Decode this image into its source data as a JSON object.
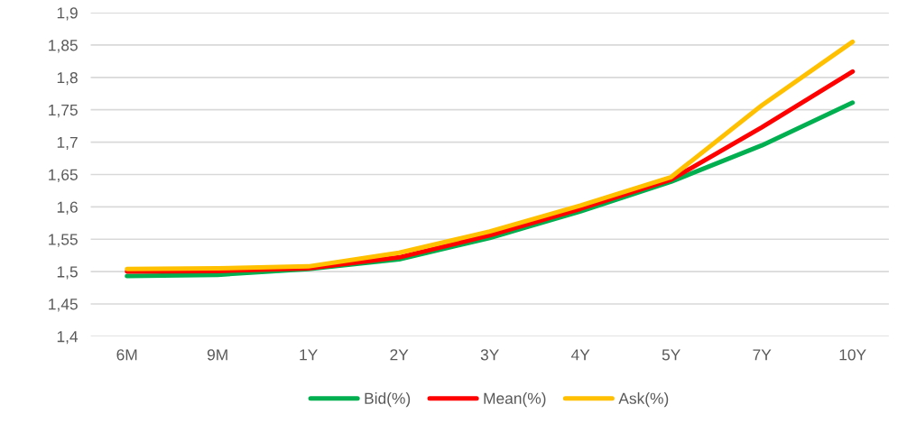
{
  "chart_data": {
    "type": "line",
    "categories": [
      "6M",
      "9M",
      "1Y",
      "2Y",
      "3Y",
      "4Y",
      "5Y",
      "7Y",
      "10Y"
    ],
    "series": [
      {
        "name": "Bid(%)",
        "color": "#00b050",
        "values": [
          1.493,
          1.495,
          1.504,
          1.519,
          1.552,
          1.593,
          1.639,
          1.695,
          1.761
        ]
      },
      {
        "name": "Mean(%)",
        "color": "#ff0000",
        "values": [
          1.5,
          1.501,
          1.505,
          1.522,
          1.556,
          1.597,
          1.642,
          1.723,
          1.809
        ]
      },
      {
        "name": "Ask(%)",
        "color": "#ffc000",
        "values": [
          1.504,
          1.505,
          1.508,
          1.529,
          1.562,
          1.602,
          1.646,
          1.757,
          1.855
        ]
      }
    ],
    "ylim": [
      1.4,
      1.9
    ],
    "yticks": [
      {
        "value": 1.4,
        "label": "1,4"
      },
      {
        "value": 1.45,
        "label": "1,45"
      },
      {
        "value": 1.5,
        "label": "1,5"
      },
      {
        "value": 1.55,
        "label": "1,55"
      },
      {
        "value": 1.6,
        "label": "1,6"
      },
      {
        "value": 1.65,
        "label": "1,65"
      },
      {
        "value": 1.7,
        "label": "1,7"
      },
      {
        "value": 1.75,
        "label": "1,75"
      },
      {
        "value": 1.8,
        "label": "1,8"
      },
      {
        "value": 1.85,
        "label": "1,85"
      },
      {
        "value": 1.9,
        "label": "1,9"
      }
    ],
    "grid": "y",
    "legend": "bottom",
    "marker": "none",
    "line_style": "solid"
  }
}
